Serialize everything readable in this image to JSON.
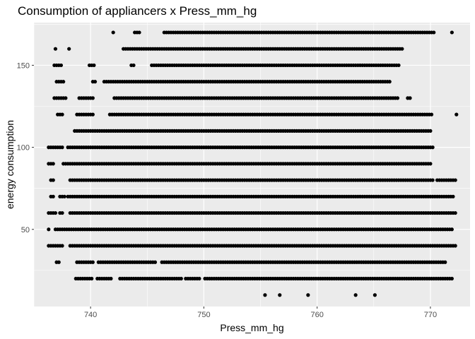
{
  "chart_data": {
    "type": "scatter",
    "title": "Consumption of appliancers x Press_mm_hg",
    "xlabel": "Press_mm_hg",
    "ylabel": "energy consumption",
    "xlim": [
      735.0,
      773.5
    ],
    "ylim": [
      3,
      176
    ],
    "x_ticks": [
      740,
      750,
      760,
      770
    ],
    "y_ticks": [
      50,
      100,
      150
    ],
    "x_tick_labels": [
      "740",
      "750",
      "760",
      "770"
    ],
    "y_tick_labels": [
      "50",
      "100",
      "150"
    ],
    "grid": true,
    "point_color": "#000000",
    "panel_color": "#EBEBEB",
    "levels": [
      {
        "y": 10,
        "x": [
          755.4,
          756.7,
          759.2,
          763.4,
          765.1
        ]
      },
      {
        "y": 20,
        "x_ranges": [
          [
            738.7,
            740.1
          ],
          [
            740.6,
            741.9
          ],
          [
            742.6,
            748.0
          ],
          [
            748.4,
            749.6
          ],
          [
            750.1,
            772.0
          ]
        ]
      },
      {
        "y": 30,
        "x_ranges": [
          [
            737.0,
            737.2
          ],
          [
            738.8,
            740.2
          ],
          [
            740.7,
            745.8
          ],
          [
            746.3,
            771.3
          ]
        ]
      },
      {
        "y": 40,
        "x_ranges": [
          [
            736.3,
            737.6
          ],
          [
            738.2,
            772.3
          ]
        ]
      },
      {
        "y": 50,
        "x_ranges": [
          [
            736.3,
            736.4
          ],
          [
            736.9,
            771.9
          ]
        ]
      },
      {
        "y": 60,
        "x_ranges": [
          [
            736.3,
            736.9
          ],
          [
            737.3,
            737.5
          ],
          [
            738.2,
            772.2
          ]
        ]
      },
      {
        "y": 70,
        "x_ranges": [
          [
            736.5,
            736.8
          ],
          [
            737.3,
            737.7
          ],
          [
            738.0,
            772.0
          ]
        ]
      },
      {
        "y": 80,
        "x_ranges": [
          [
            736.5,
            736.8
          ],
          [
            738.2,
            770.2
          ],
          [
            770.6,
            772.2
          ]
        ]
      },
      {
        "y": 90,
        "x_ranges": [
          [
            736.3,
            736.8
          ],
          [
            737.6,
            770.0
          ]
        ]
      },
      {
        "y": 100,
        "x_ranges": [
          [
            736.3,
            737.6
          ],
          [
            738.0,
            770.2
          ]
        ]
      },
      {
        "y": 110,
        "x_ranges": [
          [
            738.6,
            770.0
          ]
        ]
      },
      {
        "y": 120,
        "x_ranges": [
          [
            737.1,
            737.6
          ],
          [
            738.8,
            740.3
          ],
          [
            741.7,
            770.2
          ],
          [
            772.3,
            772.3
          ]
        ]
      },
      {
        "y": 130,
        "x_ranges": [
          [
            736.8,
            737.9
          ],
          [
            739.0,
            740.3
          ],
          [
            742.1,
            767.1
          ],
          [
            768.0,
            768.2
          ]
        ]
      },
      {
        "y": 140,
        "x_ranges": [
          [
            737.0,
            737.6
          ],
          [
            740.2,
            740.4
          ],
          [
            741.2,
            766.4
          ]
        ]
      },
      {
        "y": 150,
        "x_ranges": [
          [
            736.8,
            737.4
          ],
          [
            739.9,
            740.3
          ],
          [
            743.6,
            743.8
          ],
          [
            745.4,
            767.2
          ]
        ]
      },
      {
        "y": 160,
        "x_ranges": [
          [
            736.9,
            737.0
          ],
          [
            738.1,
            738.2
          ],
          [
            742.9,
            767.5
          ]
        ]
      },
      {
        "y": 170,
        "x_ranges": [
          [
            742.0,
            742.1
          ],
          [
            743.9,
            744.4
          ],
          [
            746.5,
            770.3
          ],
          [
            771.9,
            771.9
          ]
        ]
      }
    ]
  }
}
